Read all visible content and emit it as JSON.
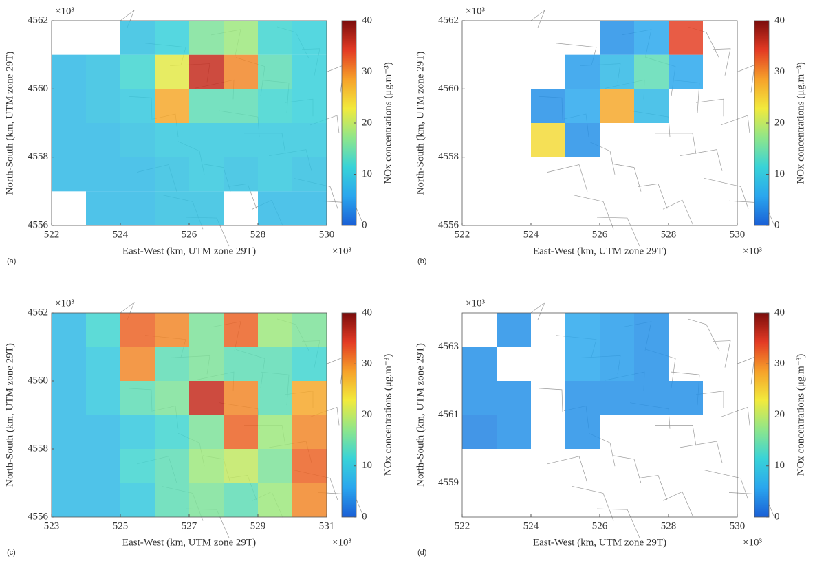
{
  "chart_data": [
    {
      "type": "heatmap",
      "panel_label": "(a)",
      "xlabel": "East-West (km, UTM zone 29T)",
      "ylabel": "North-South (km, UTM zone 29T)",
      "x_exponent": "×10³",
      "y_exponent": "×10³",
      "xlim": [
        522,
        530
      ],
      "xticks": [
        522,
        524,
        526,
        528,
        530
      ],
      "ylim": [
        4556,
        4562
      ],
      "yticks": [
        4556,
        4558,
        4560,
        4562
      ],
      "xbins": [
        522,
        523,
        524,
        525,
        526,
        527,
        528,
        529,
        530
      ],
      "ybins": [
        4556,
        4557,
        4558,
        4559,
        4560,
        4561,
        4562
      ],
      "values": [
        [
          null,
          8,
          8,
          9,
          9,
          null,
          8,
          8
        ],
        [
          8,
          8,
          8,
          9,
          10,
          9,
          10,
          9
        ],
        [
          8,
          8,
          9,
          10,
          10,
          10,
          10,
          10
        ],
        [
          8,
          9,
          10,
          28,
          14,
          14,
          12,
          11
        ],
        [
          8,
          9,
          12,
          22,
          36,
          30,
          14,
          11
        ],
        [
          null,
          null,
          9,
          11,
          16,
          18,
          12,
          11
        ]
      ],
      "colorbar": {
        "label": "NOx concentrations (μg.m⁻³)",
        "lim": [
          0,
          40
        ],
        "ticks": [
          0,
          10,
          20,
          30,
          40
        ]
      },
      "colors": [
        "#1a5fd6",
        "#2aa6ee",
        "#38d3d8",
        "#8fe68a",
        "#f2ea3c",
        "#f6a12a",
        "#e33a24",
        "#7a0c0c"
      ]
    },
    {
      "type": "heatmap",
      "panel_label": "(b)",
      "xlabel": "East-West (km, UTM zone 29T)",
      "ylabel": "North-South (km, UTM zone 29T)",
      "x_exponent": "×10³",
      "y_exponent": "×10³",
      "xlim": [
        522,
        530
      ],
      "xticks": [
        522,
        524,
        526,
        528,
        530
      ],
      "ylim": [
        4556,
        4562
      ],
      "yticks": [
        4556,
        4558,
        4560,
        4562
      ],
      "xbins": [
        522,
        523,
        524,
        525,
        526,
        527,
        528,
        529,
        530
      ],
      "ybins": [
        4556,
        4557,
        4558,
        4559,
        4560,
        4561,
        4562
      ],
      "values": [
        [
          null,
          null,
          null,
          null,
          null,
          null,
          null,
          null
        ],
        [
          null,
          null,
          null,
          null,
          null,
          null,
          null,
          null
        ],
        [
          null,
          null,
          24,
          4,
          null,
          null,
          null,
          null
        ],
        [
          null,
          null,
          4,
          6,
          28,
          8,
          null,
          null
        ],
        [
          null,
          null,
          null,
          5,
          8,
          14,
          6,
          null
        ],
        [
          null,
          null,
          null,
          null,
          4,
          6,
          34,
          null
        ]
      ],
      "colorbar": {
        "label": "NOx concentrations (μg.m⁻³)",
        "lim": [
          0,
          40
        ],
        "ticks": [
          0,
          10,
          20,
          30,
          40
        ]
      },
      "colors": [
        "#1a5fd6",
        "#2aa6ee",
        "#38d3d8",
        "#8fe68a",
        "#f2ea3c",
        "#f6a12a",
        "#e33a24",
        "#7a0c0c"
      ]
    },
    {
      "type": "heatmap",
      "panel_label": "(c)",
      "xlabel": "East-West (km, UTM zone 29T)",
      "ylabel": "North-South (km, UTM zone 29T)",
      "x_exponent": "×10³",
      "y_exponent": "×10³",
      "xlim": [
        523,
        531
      ],
      "xticks": [
        523,
        525,
        527,
        529,
        531
      ],
      "ylim": [
        4556,
        4562
      ],
      "yticks": [
        4556,
        4558,
        4560,
        4562
      ],
      "xbins": [
        523,
        524,
        525,
        526,
        527,
        528,
        529,
        530,
        531
      ],
      "ybins": [
        4556,
        4557,
        4558,
        4559,
        4560,
        4561,
        4562
      ],
      "values": [
        [
          8,
          8,
          10,
          14,
          16,
          14,
          18,
          30
        ],
        [
          8,
          8,
          12,
          14,
          18,
          20,
          16,
          32
        ],
        [
          8,
          8,
          10,
          12,
          16,
          32,
          18,
          30
        ],
        [
          8,
          10,
          14,
          16,
          36,
          30,
          14,
          28
        ],
        [
          8,
          10,
          30,
          14,
          16,
          14,
          14,
          12
        ],
        [
          8,
          12,
          32,
          30,
          16,
          32,
          18,
          16
        ]
      ],
      "colorbar": {
        "label": "NOx concentrations (μg.m⁻³)",
        "lim": [
          0,
          40
        ],
        "ticks": [
          0,
          10,
          20,
          30,
          40
        ]
      },
      "colors": [
        "#1a5fd6",
        "#2aa6ee",
        "#38d3d8",
        "#8fe68a",
        "#f2ea3c",
        "#f6a12a",
        "#e33a24",
        "#7a0c0c"
      ]
    },
    {
      "type": "heatmap",
      "panel_label": "(d)",
      "xlabel": "East-West (km, UTM zone 29T)",
      "ylabel": "North-South (km, UTM zone 29T)",
      "x_exponent": "×10³",
      "y_exponent": "×10³",
      "xlim": [
        522,
        530
      ],
      "xticks": [
        522,
        524,
        526,
        528,
        530
      ],
      "ylim": [
        4558,
        4564
      ],
      "yticks": [
        4559,
        4561,
        4563
      ],
      "xbins": [
        522,
        523,
        524,
        525,
        526,
        527,
        528,
        529,
        530
      ],
      "ybins": [
        4558,
        4559,
        4560,
        4561,
        4562,
        4563,
        4564
      ],
      "values": [
        [
          null,
          null,
          null,
          null,
          null,
          null,
          null,
          null
        ],
        [
          null,
          null,
          null,
          null,
          null,
          null,
          null,
          null
        ],
        [
          3,
          4,
          null,
          4,
          null,
          null,
          null,
          null
        ],
        [
          4,
          4,
          null,
          4,
          4,
          4,
          4,
          null
        ],
        [
          4,
          null,
          null,
          6,
          5,
          4,
          null,
          null
        ],
        [
          null,
          4,
          null,
          6,
          5,
          4,
          null,
          null
        ]
      ],
      "colorbar": {
        "label": "NOx concentrations (μg.m⁻³)",
        "lim": [
          0,
          40
        ],
        "ticks": [
          0,
          10,
          20,
          30,
          40
        ]
      },
      "colors": [
        "#1a5fd6",
        "#2aa6ee",
        "#38d3d8",
        "#8fe68a",
        "#f2ea3c",
        "#f6a12a",
        "#e33a24",
        "#7a0c0c"
      ]
    }
  ]
}
